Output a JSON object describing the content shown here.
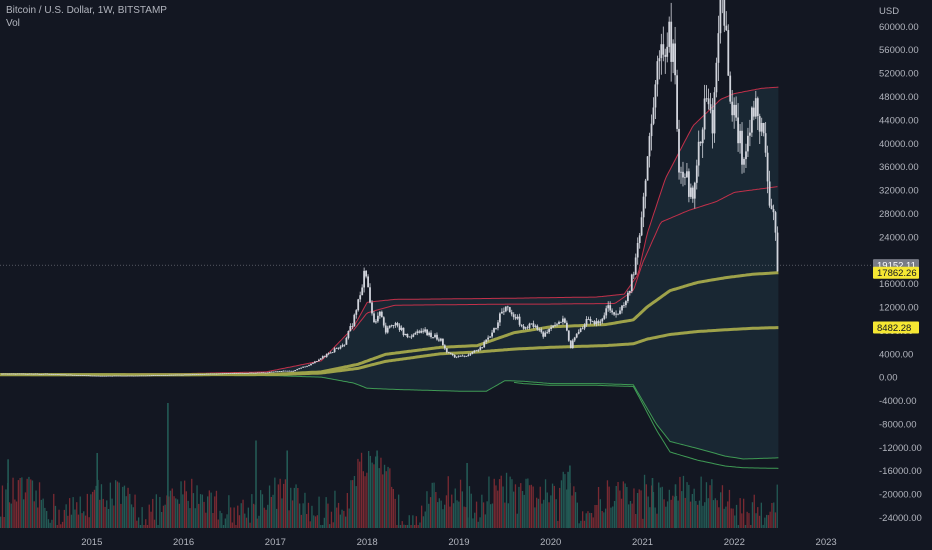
{
  "header": {
    "title": "Bitcoin / U.S. Dollar, 1W, BITSTAMP",
    "indicator": "Vol"
  },
  "axis": {
    "currency": "USD"
  },
  "colors": {
    "background": "#131722",
    "candle": "#d1d4dc",
    "band_outer": "#c2304a",
    "band_lower": "#3f9a55",
    "ma": "#9ea24a",
    "band_fill": "#1f3442",
    "vol_up": "#235a55",
    "vol_down": "#7a2a32",
    "price_tag_bg": "#787b86",
    "ma_tag_bg": "#f5e733"
  },
  "chart_data": {
    "type": "candlestick",
    "title": "Bitcoin / U.S. Dollar, 1W, BITSTAMP",
    "y_ticks": [
      60000,
      56000,
      52000,
      48000,
      44000,
      40000,
      36000,
      32000,
      28000,
      24000,
      16000,
      12000,
      8000,
      4000,
      0,
      -4000,
      -8000,
      -12000,
      -16000,
      -20000,
      -24000
    ],
    "y_tick_labels": [
      "60000.00",
      "56000.00",
      "52000.00",
      "48000.00",
      "44000.00",
      "40000.00",
      "36000.00",
      "32000.00",
      "28000.00",
      "24000.00",
      "16000.00",
      "12000.00",
      "8000.00",
      "4000.00",
      "0.00",
      "-4000.00",
      "-8000.00",
      "-12000.00",
      "-16000.00",
      "-20000.00",
      "-24000.00"
    ],
    "ylim": [
      -25800,
      64500
    ],
    "xlim": [
      2014.0,
      2023.5
    ],
    "x_ticks": [
      2015,
      2016,
      2017,
      2018,
      2019,
      2020,
      2021,
      2022,
      2023
    ],
    "x_tick_labels": [
      "2015",
      "2016",
      "2017",
      "2018",
      "2019",
      "2020",
      "2021",
      "2022",
      "2023"
    ],
    "price_keypoints": [
      [
        2014.0,
        580
      ],
      [
        2014.5,
        560
      ],
      [
        2014.9,
        320
      ],
      [
        2015.05,
        230
      ],
      [
        2015.5,
        260
      ],
      [
        2015.9,
        400
      ],
      [
        2016.0,
        430
      ],
      [
        2016.5,
        650
      ],
      [
        2016.9,
        780
      ],
      [
        2017.0,
        1000
      ],
      [
        2017.2,
        1100
      ],
      [
        2017.4,
        2400
      ],
      [
        2017.6,
        4200
      ],
      [
        2017.75,
        5800
      ],
      [
        2017.85,
        9500
      ],
      [
        2017.93,
        14500
      ],
      [
        2017.97,
        19000
      ],
      [
        2018.02,
        13500
      ],
      [
        2018.08,
        8500
      ],
      [
        2018.13,
        11000
      ],
      [
        2018.2,
        8000
      ],
      [
        2018.3,
        9400
      ],
      [
        2018.45,
        6500
      ],
      [
        2018.6,
        8000
      ],
      [
        2018.8,
        6400
      ],
      [
        2018.88,
        4000
      ],
      [
        2018.96,
        3600
      ],
      [
        2019.1,
        3700
      ],
      [
        2019.25,
        5200
      ],
      [
        2019.4,
        8700
      ],
      [
        2019.5,
        12200
      ],
      [
        2019.6,
        10800
      ],
      [
        2019.7,
        8300
      ],
      [
        2019.8,
        9200
      ],
      [
        2019.92,
        7300
      ],
      [
        2020.05,
        8700
      ],
      [
        2020.15,
        9600
      ],
      [
        2020.21,
        5000
      ],
      [
        2020.28,
        7200
      ],
      [
        2020.4,
        9600
      ],
      [
        2020.55,
        9200
      ],
      [
        2020.62,
        11700
      ],
      [
        2020.75,
        10600
      ],
      [
        2020.83,
        13800
      ],
      [
        2020.92,
        19000
      ],
      [
        2021.0,
        29000
      ],
      [
        2021.05,
        38000
      ],
      [
        2021.15,
        50000
      ],
      [
        2021.2,
        57000
      ],
      [
        2021.3,
        59000
      ],
      [
        2021.36,
        50000
      ],
      [
        2021.4,
        36000
      ],
      [
        2021.5,
        33000
      ],
      [
        2021.55,
        30000
      ],
      [
        2021.62,
        40000
      ],
      [
        2021.7,
        48000
      ],
      [
        2021.76,
        43000
      ],
      [
        2021.82,
        61000
      ],
      [
        2021.86,
        66000
      ],
      [
        2021.92,
        57000
      ],
      [
        2021.97,
        47000
      ],
      [
        2022.05,
        41000
      ],
      [
        2022.1,
        37000
      ],
      [
        2022.16,
        43000
      ],
      [
        2022.25,
        47000
      ],
      [
        2022.32,
        40000
      ],
      [
        2022.38,
        31000
      ],
      [
        2022.43,
        29500
      ],
      [
        2022.47,
        19200
      ]
    ],
    "series": [
      {
        "name": "upper-band",
        "color": "#c2304a",
        "x": [
          2014.0,
          2015.0,
          2016.0,
          2016.9,
          2017.5,
          2017.85,
          2018.0,
          2018.3,
          2019.0,
          2019.6,
          2020.0,
          2020.5,
          2020.8,
          2020.95,
          2021.05,
          2021.25,
          2021.55,
          2021.85,
          2022.0,
          2022.3,
          2022.48
        ],
        "y": [
          500,
          520,
          600,
          900,
          2800,
          8500,
          12800,
          13300,
          13400,
          13500,
          13600,
          13700,
          14200,
          17500,
          24500,
          34000,
          43000,
          47500,
          48500,
          49400,
          49600
        ]
      },
      {
        "name": "inner-band",
        "color": "#c2304a",
        "x": [
          2017.85,
          2018.0,
          2018.3,
          2019.0,
          2019.6,
          2020.0,
          2020.7,
          2020.9,
          2021.0,
          2021.2,
          2021.5,
          2021.8,
          2022.0,
          2022.48
        ],
        "y": [
          8000,
          11000,
          12300,
          12400,
          12500,
          12500,
          12600,
          14800,
          19500,
          26500,
          28500,
          30000,
          31600,
          32600
        ]
      },
      {
        "name": "ma-upper",
        "color": "#9ea24a",
        "x": [
          2014.0,
          2015.0,
          2016.0,
          2017.0,
          2017.5,
          2017.9,
          2018.2,
          2018.8,
          2019.2,
          2019.6,
          2020.0,
          2020.6,
          2020.9,
          2021.05,
          2021.3,
          2021.6,
          2021.9,
          2022.2,
          2022.48
        ],
        "y": [
          450,
          430,
          420,
          500,
          900,
          2200,
          3900,
          5100,
          5400,
          7600,
          8600,
          9000,
          9800,
          12000,
          14800,
          16200,
          17000,
          17600,
          17860
        ]
      },
      {
        "name": "ma-lower",
        "color": "#9ea24a",
        "x": [
          2014.0,
          2015.0,
          2016.0,
          2017.0,
          2017.5,
          2017.9,
          2018.2,
          2018.8,
          2019.2,
          2019.6,
          2020.0,
          2020.6,
          2020.9,
          2021.05,
          2021.3,
          2021.6,
          2021.9,
          2022.2,
          2022.48
        ],
        "y": [
          400,
          400,
          420,
          450,
          700,
          1500,
          2700,
          4000,
          4300,
          4800,
          5100,
          5400,
          5700,
          6500,
          7300,
          7800,
          8100,
          8350,
          8480
        ]
      },
      {
        "name": "lower-band",
        "color": "#3f9a55",
        "x": [
          2014.0,
          2015.0,
          2016.0,
          2017.0,
          2017.5,
          2017.85,
          2018.0,
          2018.3,
          2019.0,
          2019.3,
          2019.5,
          2019.7,
          2020.0,
          2020.5,
          2020.9,
          2021.0,
          2021.15,
          2021.3,
          2021.6,
          2021.9,
          2022.1,
          2022.48
        ],
        "y": [
          350,
          330,
          300,
          250,
          0,
          -1000,
          -1900,
          -2100,
          -2400,
          -2400,
          -600,
          -700,
          -1100,
          -1100,
          -1300,
          -4000,
          -8000,
          -11000,
          -12200,
          -13500,
          -14000,
          -13800
        ]
      },
      {
        "name": "lower-band-2",
        "color": "#3f9a55",
        "x": [
          2019.6,
          2019.7,
          2020.0,
          2020.5,
          2020.9,
          2021.0,
          2021.15,
          2021.3,
          2021.6,
          2021.9,
          2022.1,
          2022.48
        ],
        "y": [
          -900,
          -1100,
          -1400,
          -1400,
          -1600,
          -4500,
          -9000,
          -12800,
          -14200,
          -15200,
          -15500,
          -15600
        ]
      }
    ],
    "last_values": [
      {
        "label": "19152.11",
        "value": 19152.11
      },
      {
        "label": "17862.26",
        "value": 17862.26
      },
      {
        "label": "8482.28",
        "value": 8482.28
      }
    ],
    "volume_spikes": [
      {
        "x": 2015.82,
        "level": 1.0
      },
      {
        "x": 2014.08,
        "level": 0.55
      },
      {
        "x": 2015.05,
        "level": 0.6
      },
      {
        "x": 2016.78,
        "level": 0.7
      },
      {
        "x": 2017.12,
        "level": 0.62
      },
      {
        "x": 2018.1,
        "level": 0.62
      },
      {
        "x": 2019.08,
        "level": 0.52
      },
      {
        "x": 2020.2,
        "level": 0.5
      },
      {
        "x": 2020.18,
        "level": 0.45
      },
      {
        "x": 2021.1,
        "level": 0.4
      },
      {
        "x": 2021.35,
        "level": 0.35
      }
    ]
  }
}
